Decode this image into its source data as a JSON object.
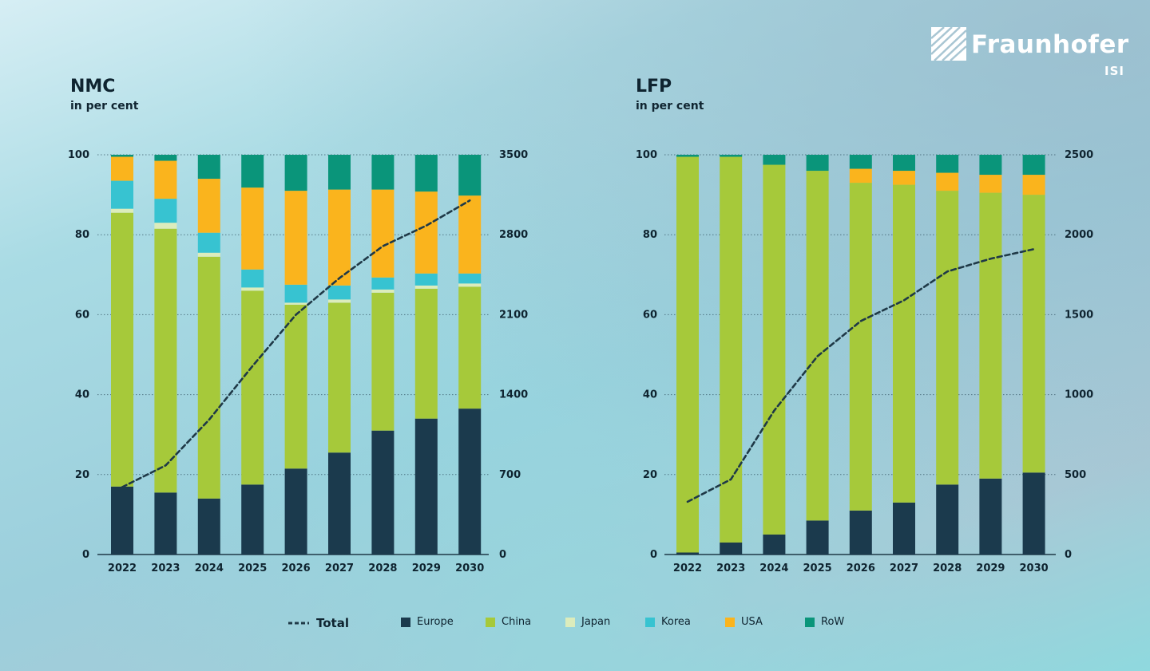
{
  "brand": {
    "name": "Fraunhofer",
    "sub": "ISI"
  },
  "colors": {
    "Europe": "#1b3a4d",
    "China": "#a6c93a",
    "Japan": "#dcecbc",
    "Korea": "#37c3d1",
    "USA": "#fab41d",
    "RoW": "#0a957a",
    "Total": "#1f3947"
  },
  "legend": [
    {
      "key": "Total",
      "label": "Total"
    },
    {
      "key": "Europe",
      "label": "Europe"
    },
    {
      "key": "China",
      "label": "China"
    },
    {
      "key": "Japan",
      "label": "Japan"
    },
    {
      "key": "Korea",
      "label": "Korea"
    },
    {
      "key": "USA",
      "label": "USA"
    },
    {
      "key": "RoW",
      "label": "RoW"
    }
  ],
  "chart_data": [
    {
      "type": "bar",
      "stacked": true,
      "title": "NMC",
      "ylabel": "in per cent",
      "ylim": [
        0,
        100
      ],
      "y2lim": [
        0,
        3500
      ],
      "yticks": [
        0,
        20,
        40,
        60,
        80,
        100
      ],
      "y2ticks": [
        0,
        700,
        1400,
        2100,
        2800,
        3500
      ],
      "categories": [
        "2022",
        "2023",
        "2024",
        "2025",
        "2026",
        "2027",
        "2028",
        "2029",
        "2030"
      ],
      "series": [
        {
          "name": "Europe",
          "values": [
            17,
            15.5,
            14,
            17.5,
            21.5,
            25.5,
            31,
            34,
            36.5
          ]
        },
        {
          "name": "China",
          "values": [
            68.5,
            66,
            60.5,
            48.5,
            41,
            37.5,
            34.5,
            32.5,
            30.5
          ]
        },
        {
          "name": "Japan",
          "values": [
            1,
            1.5,
            1,
            0.8,
            0.5,
            0.8,
            0.8,
            0.8,
            0.8
          ]
        },
        {
          "name": "Korea",
          "values": [
            7,
            6,
            5,
            4.5,
            4.5,
            3.5,
            3,
            3,
            2.5
          ]
        },
        {
          "name": "USA",
          "values": [
            6,
            9.5,
            13.5,
            20.5,
            23.5,
            24,
            22,
            20.5,
            19.5
          ]
        },
        {
          "name": "RoW",
          "values": [
            0.5,
            1.5,
            6,
            8.2,
            9,
            8.7,
            8.7,
            9.2,
            10.2
          ]
        }
      ],
      "line": {
        "name": "Total",
        "axis": "secondary",
        "values": [
          590,
          780,
          1180,
          1650,
          2100,
          2420,
          2700,
          2880,
          3100
        ]
      },
      "grid": true,
      "legend": "bottom"
    },
    {
      "type": "bar",
      "stacked": true,
      "title": "LFP",
      "ylabel": "in per cent",
      "ylim": [
        0,
        100
      ],
      "y2lim": [
        0,
        2500
      ],
      "yticks": [
        0,
        20,
        40,
        60,
        80,
        100
      ],
      "y2ticks": [
        0,
        500,
        1000,
        1500,
        2000,
        2500
      ],
      "categories": [
        "2022",
        "2023",
        "2024",
        "2025",
        "2026",
        "2027",
        "2028",
        "2029",
        "2030"
      ],
      "series": [
        {
          "name": "Europe",
          "values": [
            0.5,
            3,
            5,
            8.5,
            11,
            13,
            17.5,
            19,
            20.5
          ]
        },
        {
          "name": "China",
          "values": [
            99,
            96.5,
            92.5,
            87.5,
            82,
            79.5,
            73.5,
            71.5,
            69.5
          ]
        },
        {
          "name": "Japan",
          "values": [
            0,
            0,
            0,
            0,
            0,
            0,
            0,
            0,
            0
          ]
        },
        {
          "name": "Korea",
          "values": [
            0,
            0,
            0,
            0,
            0,
            0,
            0,
            0,
            0
          ]
        },
        {
          "name": "USA",
          "values": [
            0,
            0,
            0,
            0,
            3.5,
            3.5,
            4.5,
            4.5,
            5
          ]
        },
        {
          "name": "RoW",
          "values": [
            0.5,
            0.5,
            2.5,
            4,
            3.5,
            4,
            4.5,
            5,
            5
          ]
        }
      ],
      "line": {
        "name": "Total",
        "axis": "secondary",
        "values": [
          330,
          470,
          900,
          1240,
          1460,
          1590,
          1770,
          1850,
          1910
        ]
      },
      "grid": true,
      "legend": "bottom"
    }
  ]
}
